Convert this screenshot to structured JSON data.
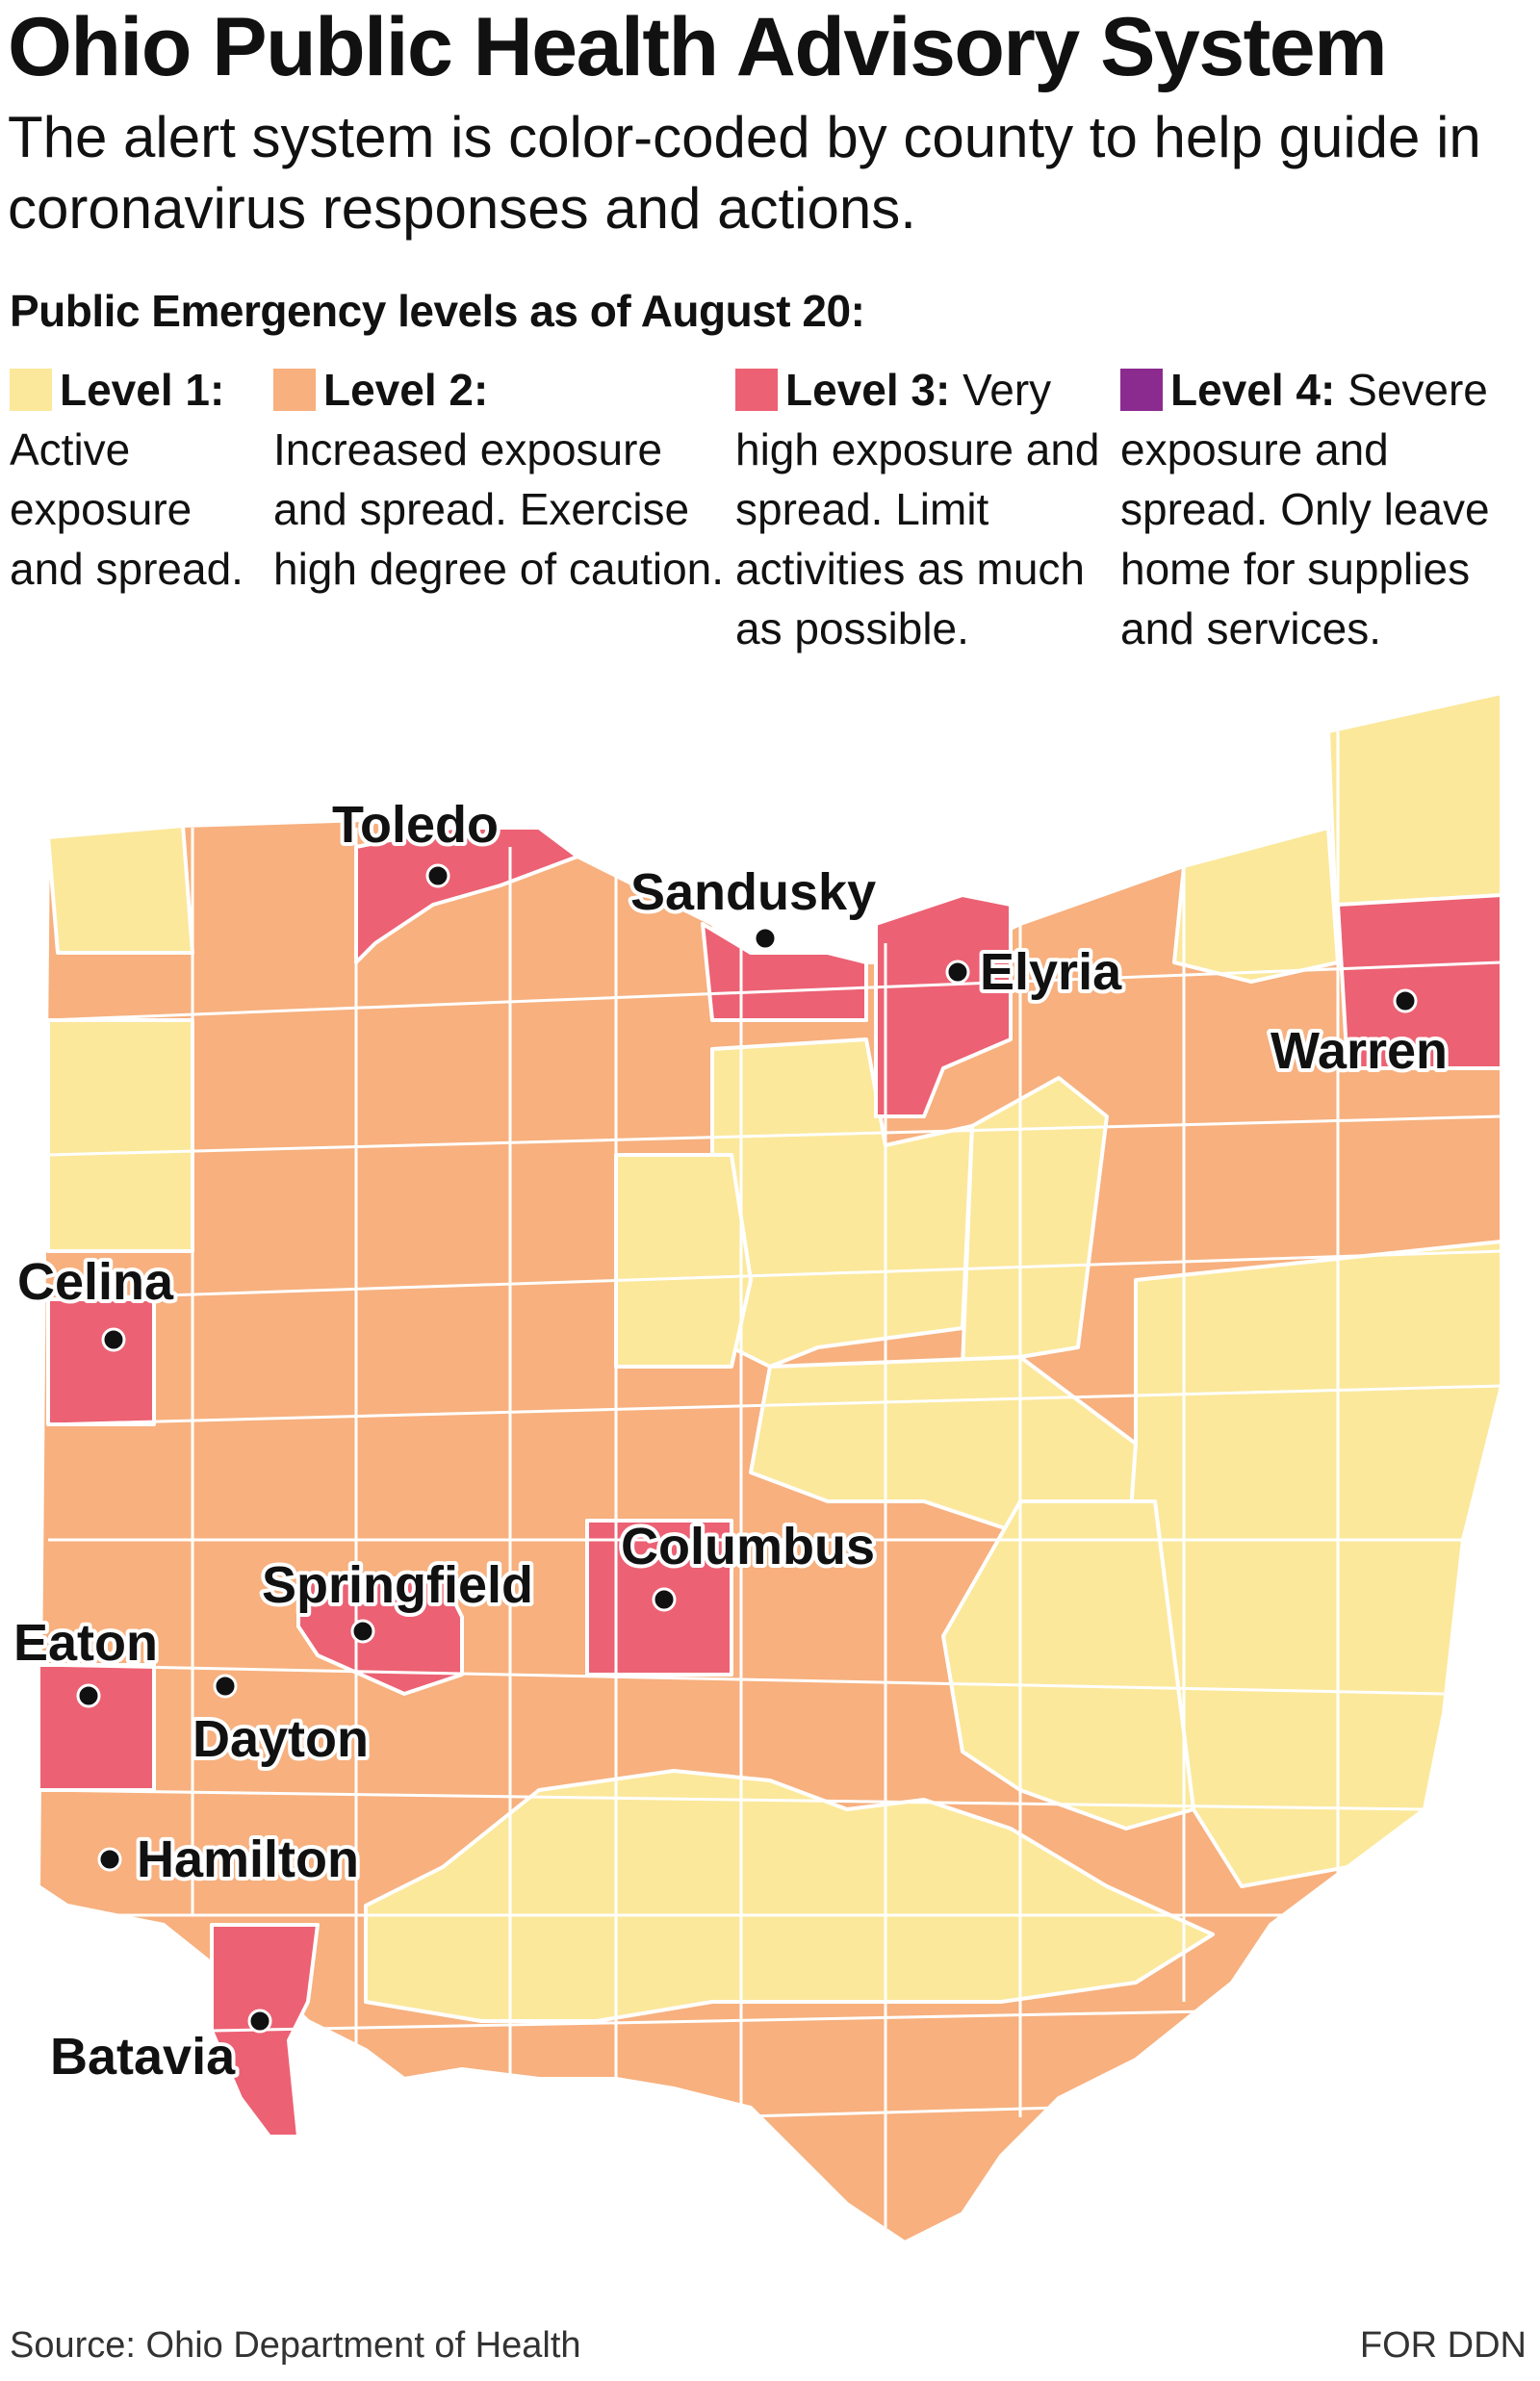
{
  "title": "Ohio Public Health Advisory System",
  "subtitle": "The alert system is color-coded by county to help guide in coronavirus responses and actions.",
  "levels_heading": "Public Emergency levels as of August 20:",
  "colors": {
    "level1": "#fbe89b",
    "level2": "#f7b07e",
    "level3": "#ec6173",
    "level4": "#8b2a8f",
    "border": "#ffffff"
  },
  "legend": [
    {
      "label": "Level 1:",
      "text": "Active exposure and spread."
    },
    {
      "label": "Level 2:",
      "text": "Increased exposure and spread. Exercise high degree of caution."
    },
    {
      "label": "Level 3:",
      "text": "Very high exposure and spread. Limit activities as much as possible."
    },
    {
      "label": "Level 4:",
      "text": "Severe exposure and spread. Only leave home for supplies and services."
    }
  ],
  "cities": [
    {
      "name": "Toledo",
      "level": 3
    },
    {
      "name": "Sandusky",
      "level": 3
    },
    {
      "name": "Elyria",
      "level": 3
    },
    {
      "name": "Warren",
      "level": 3
    },
    {
      "name": "Celina",
      "level": 3
    },
    {
      "name": "Columbus",
      "level": 3
    },
    {
      "name": "Springfield",
      "level": 3
    },
    {
      "name": "Eaton",
      "level": 3
    },
    {
      "name": "Dayton",
      "level": 2
    },
    {
      "name": "Hamilton",
      "level": 2
    },
    {
      "name": "Batavia",
      "level": 3
    }
  ],
  "source": "Source: Ohio Department of Health",
  "credit": "FOR DDN"
}
